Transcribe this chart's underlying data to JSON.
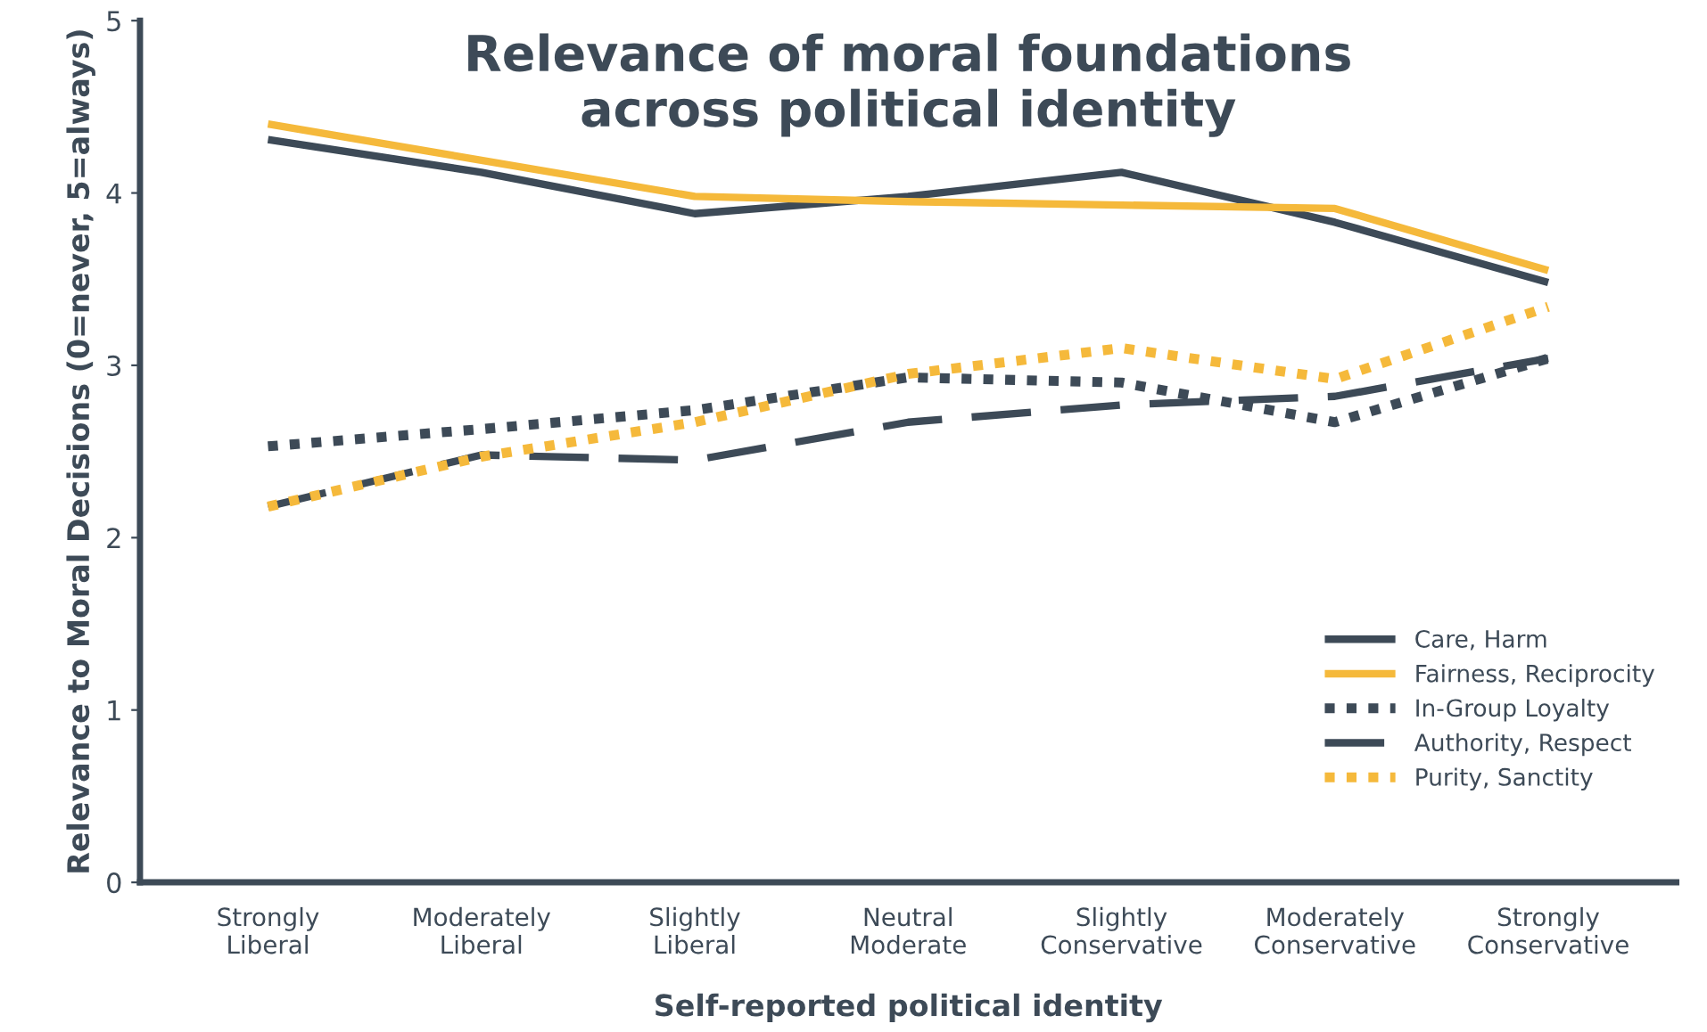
{
  "chart_data": {
    "type": "line",
    "title": "Relevance of moral foundations\nacross political identity",
    "xlabel": "Self-reported political identity",
    "ylabel": "Relevance to Moral Decisions (0=never, 5=always)",
    "categories": [
      "Strongly\nLiberal",
      "Moderately\nLiberal",
      "Slightly\nLiberal",
      "Neutral\nModerate",
      "Slightly\nConservative",
      "Moderately\nConservative",
      "Strongly\nConservative"
    ],
    "series": [
      {
        "name": "Care, Harm",
        "color": "#3d4a57",
        "line_style": "solid",
        "values": [
          4.31,
          4.12,
          3.88,
          3.98,
          4.12,
          3.83,
          3.48
        ]
      },
      {
        "name": "Fairness, Reciprocity",
        "color": "#f5b93b",
        "line_style": "solid",
        "values": [
          4.4,
          4.19,
          3.98,
          3.95,
          3.93,
          3.91,
          3.55
        ]
      },
      {
        "name": "In-Group Loyalty",
        "color": "#3d4a57",
        "line_style": "dotted",
        "values": [
          2.53,
          2.63,
          2.74,
          2.93,
          2.9,
          2.67,
          3.04
        ]
      },
      {
        "name": "Authority, Respect",
        "color": "#3d4a57",
        "line_style": "dashed",
        "values": [
          2.18,
          2.48,
          2.45,
          2.67,
          2.77,
          2.82,
          3.04
        ]
      },
      {
        "name": "Purity, Sanctity",
        "color": "#f5b93b",
        "line_style": "dotted",
        "values": [
          2.18,
          2.47,
          2.67,
          2.95,
          3.1,
          2.92,
          3.34
        ]
      }
    ],
    "ylim": [
      0,
      5
    ],
    "yticks": [
      0,
      1,
      2,
      3,
      4,
      5
    ],
    "grid": false,
    "legend": "right",
    "marker": "none"
  }
}
